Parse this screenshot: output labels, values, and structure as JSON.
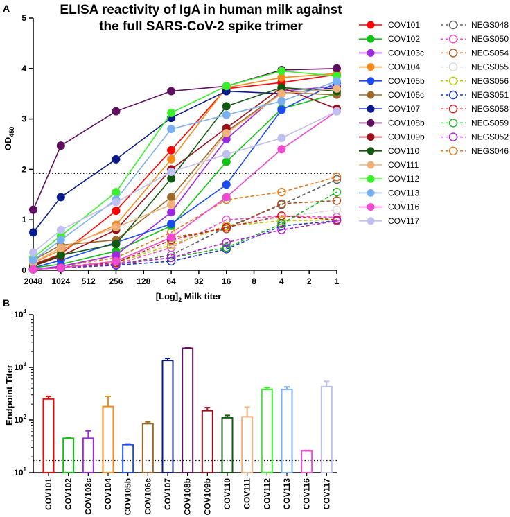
{
  "chart_data": [
    {
      "panel": "A",
      "type": "line",
      "title_lines": [
        "ELISA reactivity of IgA in human milk against",
        "the full SARS-CoV-2 spike trimer"
      ],
      "xlabel_prefix": "[Log]",
      "xlabel_sub": "2",
      "xlabel_suffix": " Milk titer",
      "ylabel_main": "OD",
      "ylabel_sub": "450",
      "x_categories": [
        "2048",
        "1024",
        "512",
        "256",
        "128",
        "64",
        "32",
        "16",
        "8",
        "4",
        "2",
        "1"
      ],
      "y_ticks": [
        "0",
        "1",
        "2",
        "3",
        "4",
        "5"
      ],
      "ylim": [
        0,
        5
      ],
      "threshold": 1.92,
      "x": [
        2048,
        1024,
        256,
        64,
        16,
        4,
        1
      ],
      "positive_series": [
        {
          "name": "COV101",
          "color": "#ff0000",
          "values": [
            0.12,
            0.32,
            1.18,
            2.38,
            3.6,
            3.72,
            3.88
          ]
        },
        {
          "name": "COV102",
          "color": "#12c212",
          "values": [
            0.05,
            0.12,
            0.38,
            0.88,
            2.15,
            3.2,
            3.5
          ]
        },
        {
          "name": "COV103c",
          "color": "#9d28e0",
          "values": [
            0.02,
            0.08,
            0.3,
            1.15,
            2.6,
            3.55,
            3.65
          ]
        },
        {
          "name": "COV104",
          "color": "#f58a1a",
          "values": [
            0.15,
            0.4,
            0.9,
            2.2,
            3.62,
            3.82,
            3.9
          ]
        },
        {
          "name": "COV105b",
          "color": "#1a4bf0",
          "values": [
            0.05,
            0.2,
            0.55,
            0.92,
            1.7,
            3.18,
            3.72
          ]
        },
        {
          "name": "COV106c",
          "color": "#9a6a2a",
          "values": [
            0.2,
            0.5,
            0.6,
            1.45,
            2.75,
            3.52,
            3.48
          ]
        },
        {
          "name": "COV107",
          "color": "#0a1a8a",
          "values": [
            0.75,
            1.45,
            2.2,
            3.02,
            3.55,
            3.5,
            3.62
          ]
        },
        {
          "name": "COV108b",
          "color": "#5e0f5e",
          "values": [
            1.2,
            2.47,
            3.15,
            3.55,
            3.65,
            3.97,
            4.0
          ]
        },
        {
          "name": "COV109b",
          "color": "#9a0f1a",
          "values": [
            0.08,
            0.28,
            0.8,
            2.0,
            2.82,
            3.62,
            3.2
          ]
        },
        {
          "name": "COV110",
          "color": "#0f5a0f",
          "values": [
            0.1,
            0.3,
            0.52,
            1.82,
            3.25,
            3.62,
            3.55
          ]
        },
        {
          "name": "COV111",
          "color": "#f0b07a",
          "values": [
            0.15,
            0.45,
            0.85,
            1.3,
            2.72,
            3.5,
            3.6
          ]
        },
        {
          "name": "COV112",
          "color": "#39f02a",
          "values": [
            0.25,
            0.68,
            1.55,
            3.12,
            3.65,
            3.95,
            3.85
          ]
        },
        {
          "name": "COV113",
          "color": "#7ab0f0",
          "values": [
            0.2,
            0.6,
            1.4,
            2.8,
            3.08,
            3.35,
            3.75
          ]
        },
        {
          "name": "COV116",
          "color": "#f04ad0",
          "values": [
            0.02,
            0.05,
            0.18,
            0.65,
            1.45,
            2.4,
            3.15
          ]
        },
        {
          "name": "COV117",
          "color": "#c0c0f0",
          "values": [
            0.35,
            0.8,
            1.35,
            1.95,
            2.3,
            2.62,
            3.15
          ]
        }
      ],
      "negative_series": [
        {
          "name": "NEGS048",
          "color": "#606060",
          "values": [
            0.02,
            0.05,
            0.12,
            0.3,
            0.85,
            1.3,
            1.8
          ]
        },
        {
          "name": "NEGS050",
          "color": "#f04ad0",
          "values": [
            0.02,
            0.05,
            0.12,
            0.45,
            1.0,
            1.08,
            1.05
          ]
        },
        {
          "name": "NEGS054",
          "color": "#b0541a",
          "values": [
            0.02,
            0.06,
            0.18,
            0.65,
            0.82,
            1.32,
            1.38
          ]
        },
        {
          "name": "NEGS055",
          "color": "#d8d8d8",
          "values": [
            0.02,
            0.05,
            0.15,
            0.55,
            0.88,
            1.05,
            1.2
          ]
        },
        {
          "name": "NEGS056",
          "color": "#b8c800",
          "values": [
            0.02,
            0.05,
            0.15,
            0.5,
            0.88,
            0.98,
            1.0
          ]
        },
        {
          "name": "NEGS051",
          "color": "#1a3ac0",
          "values": [
            0.02,
            0.05,
            0.1,
            0.18,
            0.42,
            0.88,
            0.98
          ]
        },
        {
          "name": "NEGS058",
          "color": "#d01a1a",
          "values": [
            0.02,
            0.06,
            0.15,
            0.6,
            0.85,
            1.08,
            1.0
          ]
        },
        {
          "name": "NEGS059",
          "color": "#1ab01a",
          "values": [
            0.02,
            0.05,
            0.12,
            0.25,
            0.45,
            0.92,
            1.55
          ]
        },
        {
          "name": "NEGS052",
          "color": "#b01ad0",
          "values": [
            0.02,
            0.05,
            0.12,
            0.25,
            0.55,
            0.8,
            0.98
          ]
        },
        {
          "name": "NEGS046",
          "color": "#e8781a",
          "values": [
            0.02,
            0.08,
            0.25,
            0.75,
            1.4,
            1.55,
            1.85
          ]
        }
      ]
    },
    {
      "panel": "B",
      "type": "bar",
      "ylabel": "Endpoint Titer",
      "scale": "log10",
      "y_tick_exponents": [
        "1",
        "2",
        "3",
        "4"
      ],
      "ylim": [
        10,
        10000
      ],
      "threshold": 17,
      "categories": [
        "COV101",
        "COV102",
        "COV103c",
        "COV104",
        "COV105b",
        "COV106c",
        "COV107",
        "COV108b",
        "COV109b",
        "COV110",
        "COV111",
        "COV112",
        "COV113",
        "COV116",
        "COV117"
      ],
      "values": [
        250,
        45,
        45,
        180,
        34,
        85,
        1350,
        2300,
        150,
        110,
        115,
        380,
        380,
        26,
        430
      ],
      "error_high": [
        280,
        46,
        62,
        280,
        35,
        92,
        1480,
        2360,
        172,
        122,
        175,
        410,
        425,
        26.5,
        540
      ],
      "colors": [
        "#ff0000",
        "#12c212",
        "#9d28e0",
        "#f58a1a",
        "#1a4bf0",
        "#9a6a2a",
        "#0a1a8a",
        "#5e0f5e",
        "#9a0f1a",
        "#0f5a0f",
        "#f0b07a",
        "#39f02a",
        "#7ab0f0",
        "#f04ad0",
        "#c0c0f0"
      ]
    }
  ],
  "panels": {
    "a_label": "A",
    "b_label": "B",
    "power_base": "10"
  }
}
